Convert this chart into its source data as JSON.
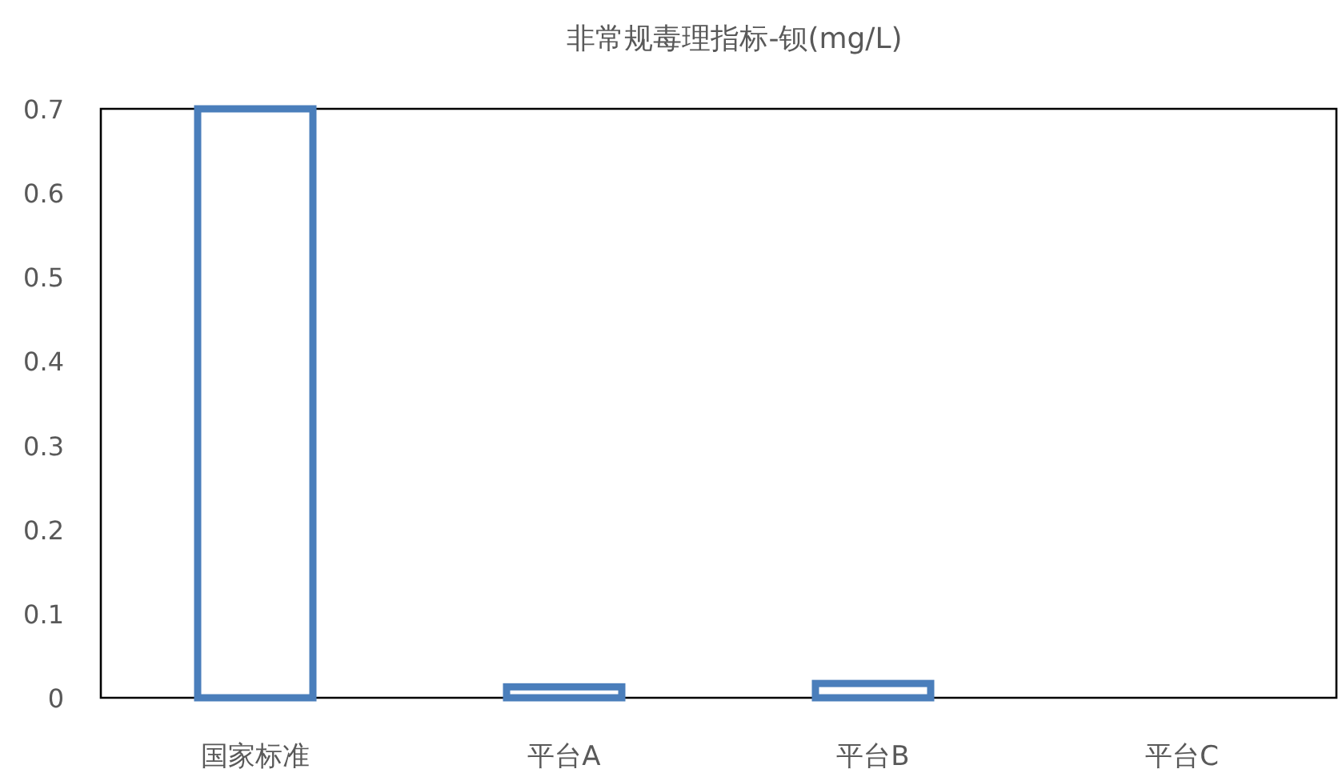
{
  "chart_data": {
    "type": "bar",
    "title": "非常规毒理指标-钡(mg/L)",
    "categories": [
      "国家标准",
      "平台A",
      "平台B",
      "平台C"
    ],
    "values": [
      0.7,
      0.013,
      0.017,
      null
    ],
    "color": "#4a7ebb",
    "ylim": [
      0,
      0.7
    ],
    "yticks": [
      0,
      0.1,
      0.2,
      0.3,
      0.4,
      0.5,
      0.6,
      0.7
    ],
    "grid": false
  }
}
